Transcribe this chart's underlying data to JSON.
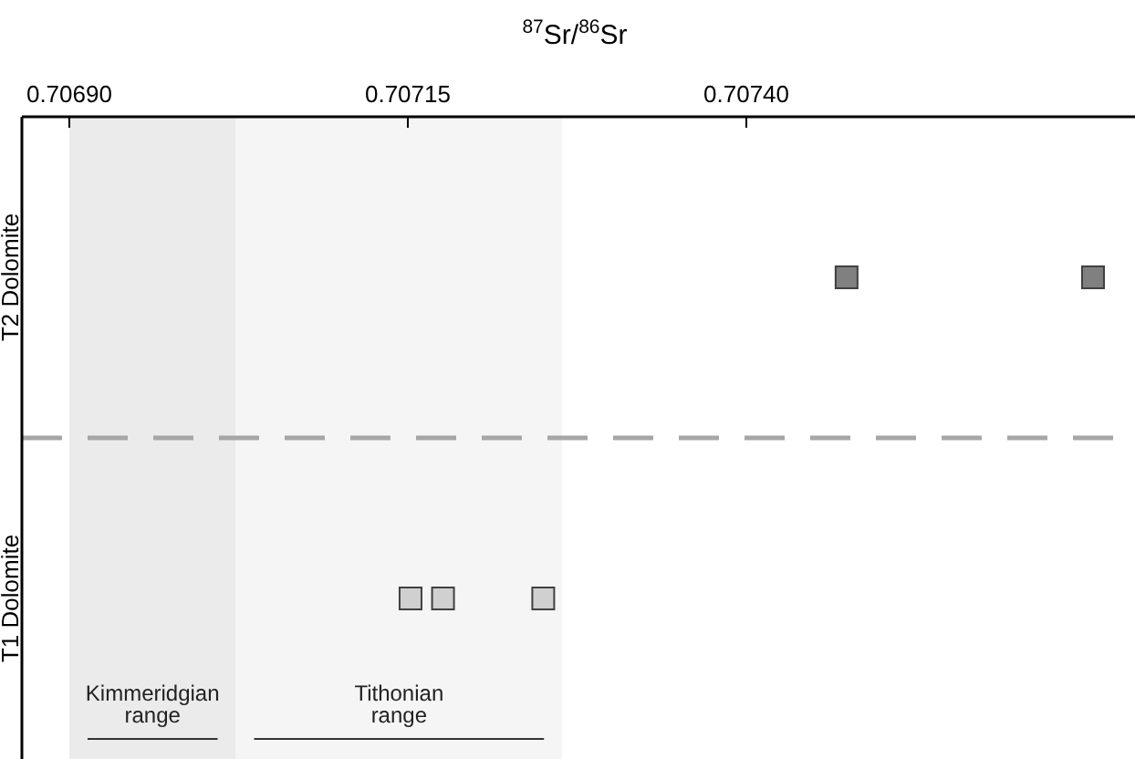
{
  "chart_data": {
    "type": "scatter",
    "xlabel": "$^{87}$Sr/$^{86}$Sr",
    "categories": [
      "T2 Dolomite",
      "T1 Dolomite"
    ],
    "orientation": "horizontal",
    "xlim": [
      0.706865,
      0.707687
    ],
    "xticks": [
      {
        "value": 0.7069,
        "label": "0.70690"
      },
      {
        "value": 0.70715,
        "label": "0.70715"
      },
      {
        "value": 0.7074,
        "label": "0.70740"
      }
    ],
    "marker": "square",
    "grid": "y",
    "line_style": "dashed",
    "series": [
      {
        "colors": [
          "#808080",
          "#d0d0d0"
        ],
        "values": [
          0.707474,
          0.707152
        ]
      },
      {
        "colors": [
          "#808080",
          "#d0d0d0"
        ],
        "values": [
          0.707656,
          0.707176
        ]
      },
      {
        "colors": [
          null,
          "#d0d0d0"
        ],
        "values": [
          null,
          0.70725
        ]
      }
    ],
    "bands": [
      {
        "axis": "x",
        "from": 0.7069,
        "to": 0.707023,
        "label": "Kimmeridgian range",
        "color": "#ebebeb"
      },
      {
        "axis": "x",
        "from": 0.707023,
        "to": 0.707264,
        "label": "Tithonian range",
        "color": "#f5f5f5"
      }
    ]
  }
}
